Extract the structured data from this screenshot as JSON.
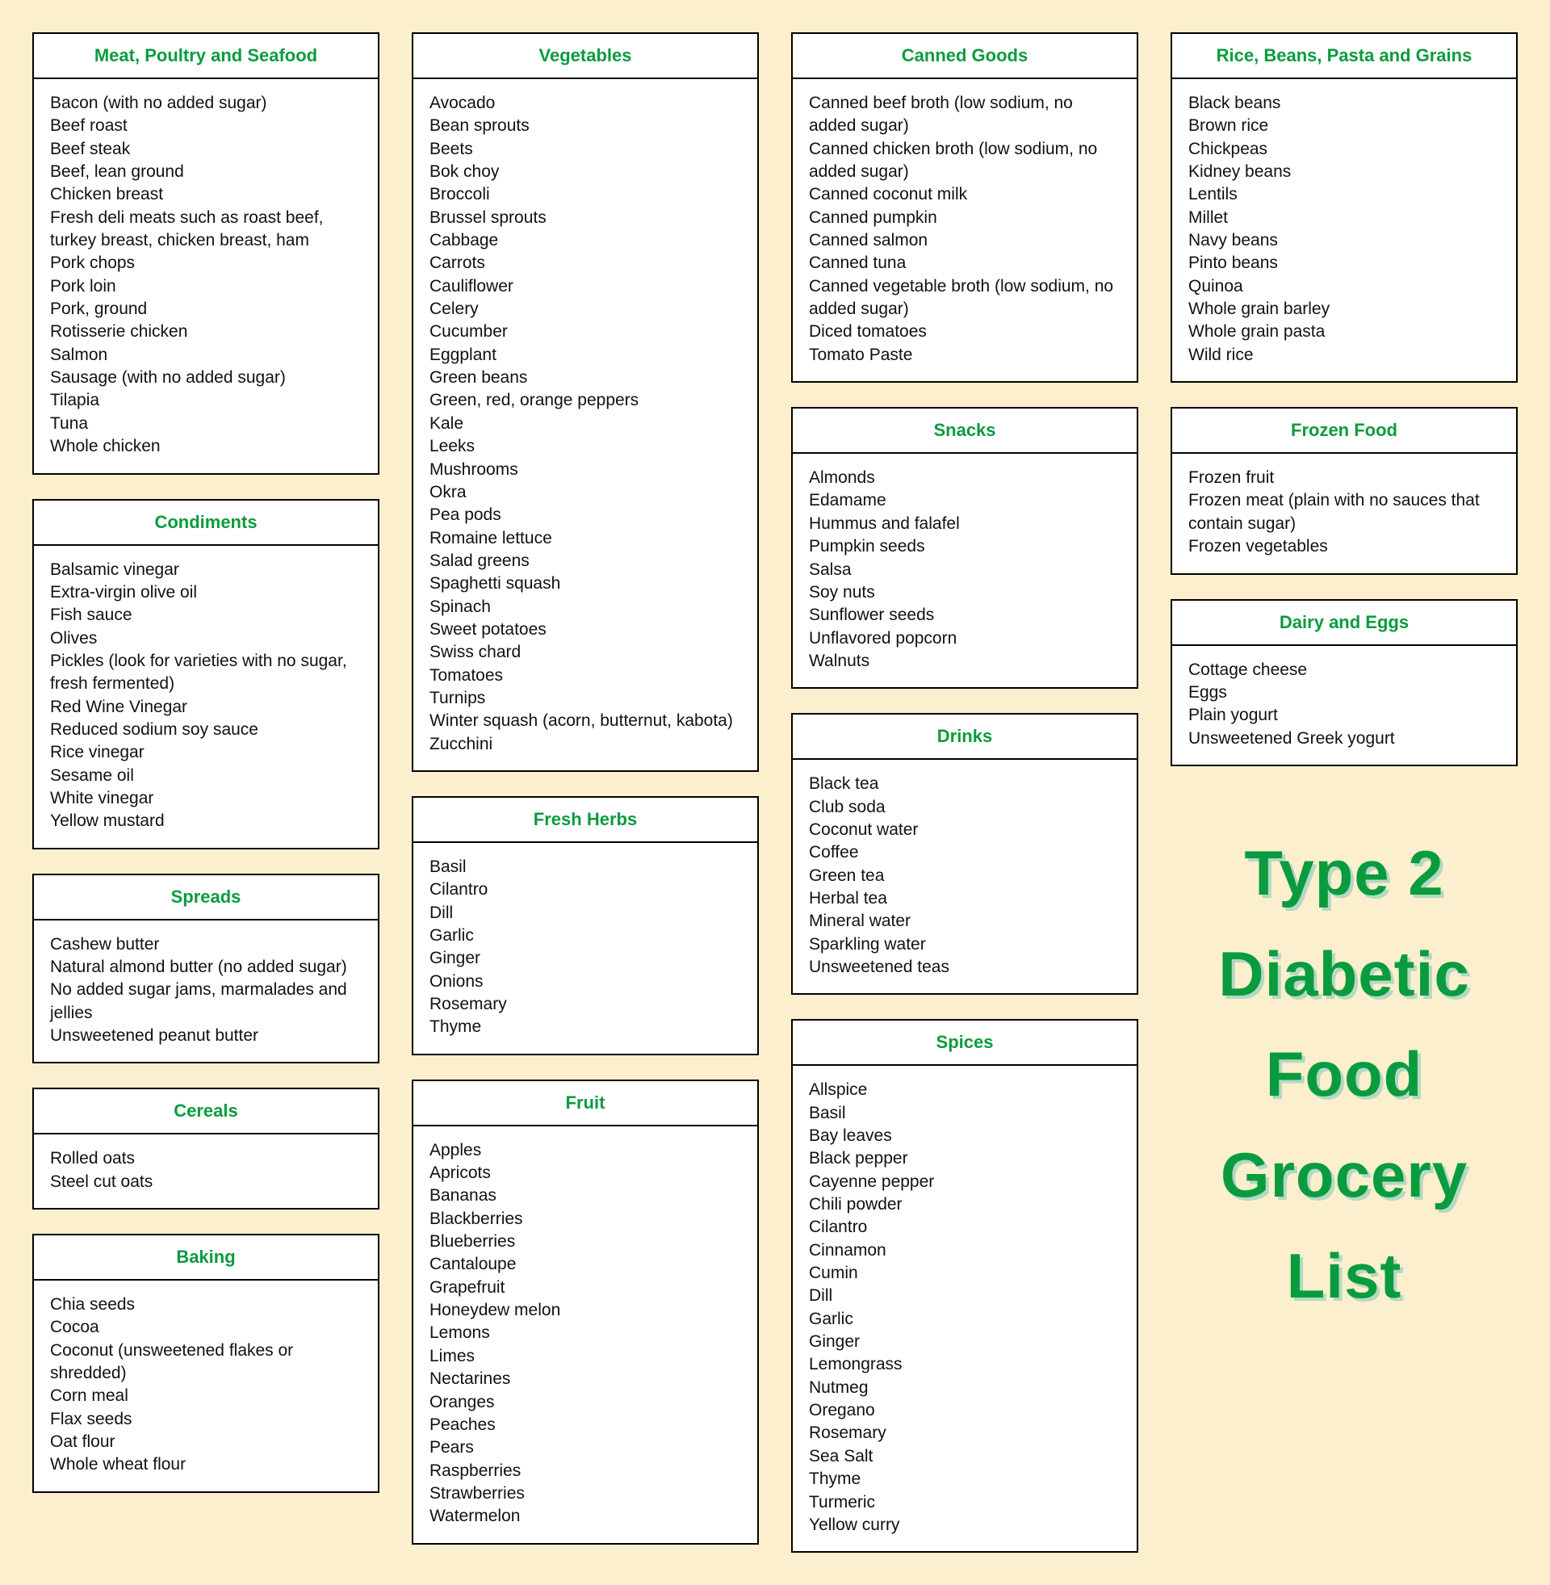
{
  "background_color": "#fcefce",
  "card_bg": "#ffffff",
  "card_border": "#000000",
  "header_color": "#0a9b3f",
  "text_color": "#111111",
  "font_family": "Segoe UI, Arial, sans-serif",
  "header_fontsize": 22,
  "body_fontsize": 21,
  "title_fontsize": 78,
  "title_color": "#0a9b3f",
  "title_shadow": "#b3d9c3",
  "title_lines": [
    "Type 2",
    "Diabetic",
    "Food",
    "Grocery",
    "List"
  ],
  "columns": [
    [
      {
        "title": "Meat, Poultry and Seafood",
        "items": [
          "Bacon (with no added sugar)",
          "Beef roast",
          "Beef steak",
          "Beef, lean ground",
          "Chicken breast",
          "Fresh deli meats such as roast beef, turkey breast, chicken breast, ham",
          "Pork chops",
          "Pork loin",
          "Pork, ground",
          "Rotisserie chicken",
          "Salmon",
          "Sausage (with no added sugar)",
          "Tilapia",
          "Tuna",
          "Whole chicken"
        ]
      },
      {
        "title": "Condiments",
        "items": [
          "Balsamic vinegar",
          "Extra-virgin olive oil",
          "Fish sauce",
          "Olives",
          "Pickles (look for varieties with no sugar, fresh fermented)",
          "Red Wine Vinegar",
          "Reduced sodium soy sauce",
          "Rice vinegar",
          "Sesame oil",
          "White vinegar",
          "Yellow mustard"
        ]
      },
      {
        "title": "Spreads",
        "items": [
          "Cashew butter",
          "Natural almond butter (no added sugar)",
          "No added sugar jams, marmalades and jellies",
          "Unsweetened peanut butter"
        ]
      },
      {
        "title": "Cereals",
        "items": [
          "Rolled oats",
          "Steel cut oats"
        ]
      },
      {
        "title": "Baking",
        "items": [
          "Chia seeds",
          "Cocoa",
          "Coconut (unsweetened flakes or shredded)",
          "Corn meal",
          "Flax seeds",
          "Oat flour",
          "Whole wheat flour"
        ]
      }
    ],
    [
      {
        "title": "Vegetables",
        "items": [
          "Avocado",
          "Bean sprouts",
          "Beets",
          "Bok choy",
          "Broccoli",
          "Brussel sprouts",
          "Cabbage",
          "Carrots",
          "Cauliflower",
          "Celery",
          "Cucumber",
          "Eggplant",
          "Green beans",
          "Green, red, orange peppers",
          "Kale",
          "Leeks",
          "Mushrooms",
          "Okra",
          "Pea pods",
          "Romaine lettuce",
          "Salad greens",
          "Spaghetti squash",
          "Spinach",
          "Sweet potatoes",
          "Swiss chard",
          "Tomatoes",
          "Turnips",
          "Winter squash (acorn, butternut, kabota)",
          "Zucchini"
        ]
      },
      {
        "title": "Fresh Herbs",
        "items": [
          "Basil",
          "Cilantro",
          "Dill",
          "Garlic",
          "Ginger",
          "Onions",
          "Rosemary",
          "Thyme"
        ]
      },
      {
        "title": "Fruit",
        "items": [
          "Apples",
          "Apricots",
          "Bananas",
          "Blackberries",
          "Blueberries",
          "Cantaloupe",
          "Grapefruit",
          "Honeydew melon",
          "Lemons",
          "Limes",
          "Nectarines",
          "Oranges",
          "Peaches",
          "Pears",
          "Raspberries",
          "Strawberries",
          "Watermelon"
        ]
      }
    ],
    [
      {
        "title": "Canned Goods",
        "items": [
          "Canned beef broth (low sodium, no added sugar)",
          "Canned chicken broth (low sodium, no added sugar)",
          "Canned coconut milk",
          "Canned pumpkin",
          "Canned salmon",
          "Canned tuna",
          "Canned vegetable broth (low sodium, no added sugar)",
          "Diced tomatoes",
          "Tomato Paste"
        ]
      },
      {
        "title": "Snacks",
        "items": [
          "Almonds",
          "Edamame",
          "Hummus and falafel",
          "Pumpkin seeds",
          "Salsa",
          "Soy nuts",
          "Sunflower seeds",
          "Unflavored popcorn",
          "Walnuts"
        ]
      },
      {
        "title": "Drinks",
        "items": [
          "Black tea",
          "Club soda",
          "Coconut water",
          "Coffee",
          "Green tea",
          "Herbal tea",
          "Mineral water",
          "Sparkling water",
          "Unsweetened teas"
        ]
      },
      {
        "title": "Spices",
        "items": [
          "Allspice",
          "Basil",
          "Bay leaves",
          "Black pepper",
          "Cayenne pepper",
          "Chili powder",
          "Cilantro",
          "Cinnamon",
          "Cumin",
          "Dill",
          "Garlic",
          "Ginger",
          "Lemongrass",
          "Nutmeg",
          "Oregano",
          "Rosemary",
          "Sea Salt",
          "Thyme",
          "Turmeric",
          "Yellow curry"
        ]
      }
    ],
    [
      {
        "title": "Rice, Beans, Pasta and Grains",
        "items": [
          "Black beans",
          "Brown rice",
          "Chickpeas",
          "Kidney beans",
          "Lentils",
          "Millet",
          "Navy beans",
          "Pinto beans",
          "Quinoa",
          "Whole grain barley",
          "Whole grain pasta",
          "Wild rice"
        ]
      },
      {
        "title": "Frozen Food",
        "items": [
          "Frozen fruit",
          "Frozen meat (plain with no sauces that contain sugar)",
          "Frozen vegetables"
        ]
      },
      {
        "title": "Dairy and Eggs",
        "items": [
          "Cottage cheese",
          "Eggs",
          "Plain yogurt",
          "Unsweetened Greek yogurt"
        ]
      },
      {
        "type": "title"
      }
    ]
  ]
}
